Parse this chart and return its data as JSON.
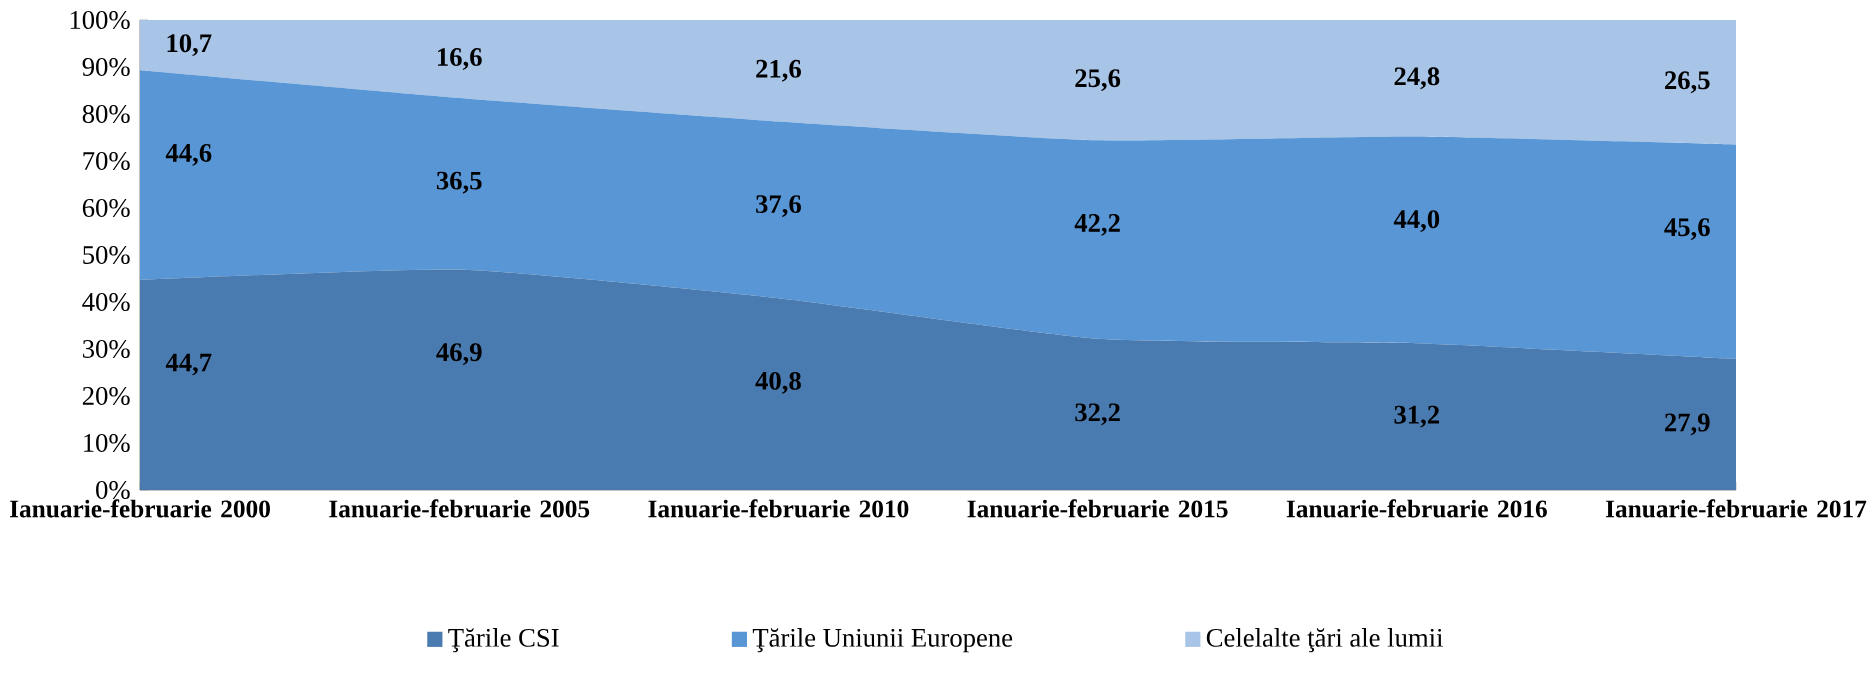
{
  "chart_data": {
    "type": "area",
    "stacked": true,
    "categories": [
      "Ianuarie-februarie 2000",
      "Ianuarie-februarie 2005",
      "Ianuarie-februarie 2010",
      "Ianuarie-februarie 2015",
      "Ianuarie-februarie 2016",
      "Ianuarie-februarie 2017"
    ],
    "series": [
      {
        "name": "Ţările CSI",
        "color": "#4a7bb0",
        "values": [
          44.7,
          46.9,
          40.8,
          32.2,
          31.2,
          27.9
        ],
        "value_labels": [
          "44,7",
          "46,9",
          "40,8",
          "32,2",
          "31,2",
          "27,9"
        ]
      },
      {
        "name": "Ţările Uniunii Europene",
        "color": "#5896d6",
        "values": [
          44.6,
          36.5,
          37.6,
          42.2,
          44.0,
          45.6
        ],
        "value_labels": [
          "44,6",
          "36,5",
          "37,6",
          "42,2",
          "44,0",
          "45,6"
        ]
      },
      {
        "name": "Celelalte ţări ale lumii",
        "color": "#a8c4e6",
        "values": [
          10.7,
          16.6,
          21.6,
          25.6,
          24.8,
          26.5
        ],
        "value_labels": [
          "10,7",
          "16,6",
          "21,6",
          "25,6",
          "24,8",
          "26,5"
        ]
      }
    ],
    "ylim": [
      0,
      100
    ],
    "yticks": [
      {
        "value": 0,
        "label": "0%"
      },
      {
        "value": 10,
        "label": "10%"
      },
      {
        "value": 20,
        "label": "20%"
      },
      {
        "value": 30,
        "label": "30%"
      },
      {
        "value": 40,
        "label": "40%"
      },
      {
        "value": 50,
        "label": "50%"
      },
      {
        "value": 60,
        "label": "60%"
      },
      {
        "value": 70,
        "label": "70%"
      },
      {
        "value": 80,
        "label": "80%"
      },
      {
        "value": 90,
        "label": "90%"
      },
      {
        "value": 100,
        "label": "100%"
      }
    ],
    "legend": "bottom",
    "grid": false
  }
}
